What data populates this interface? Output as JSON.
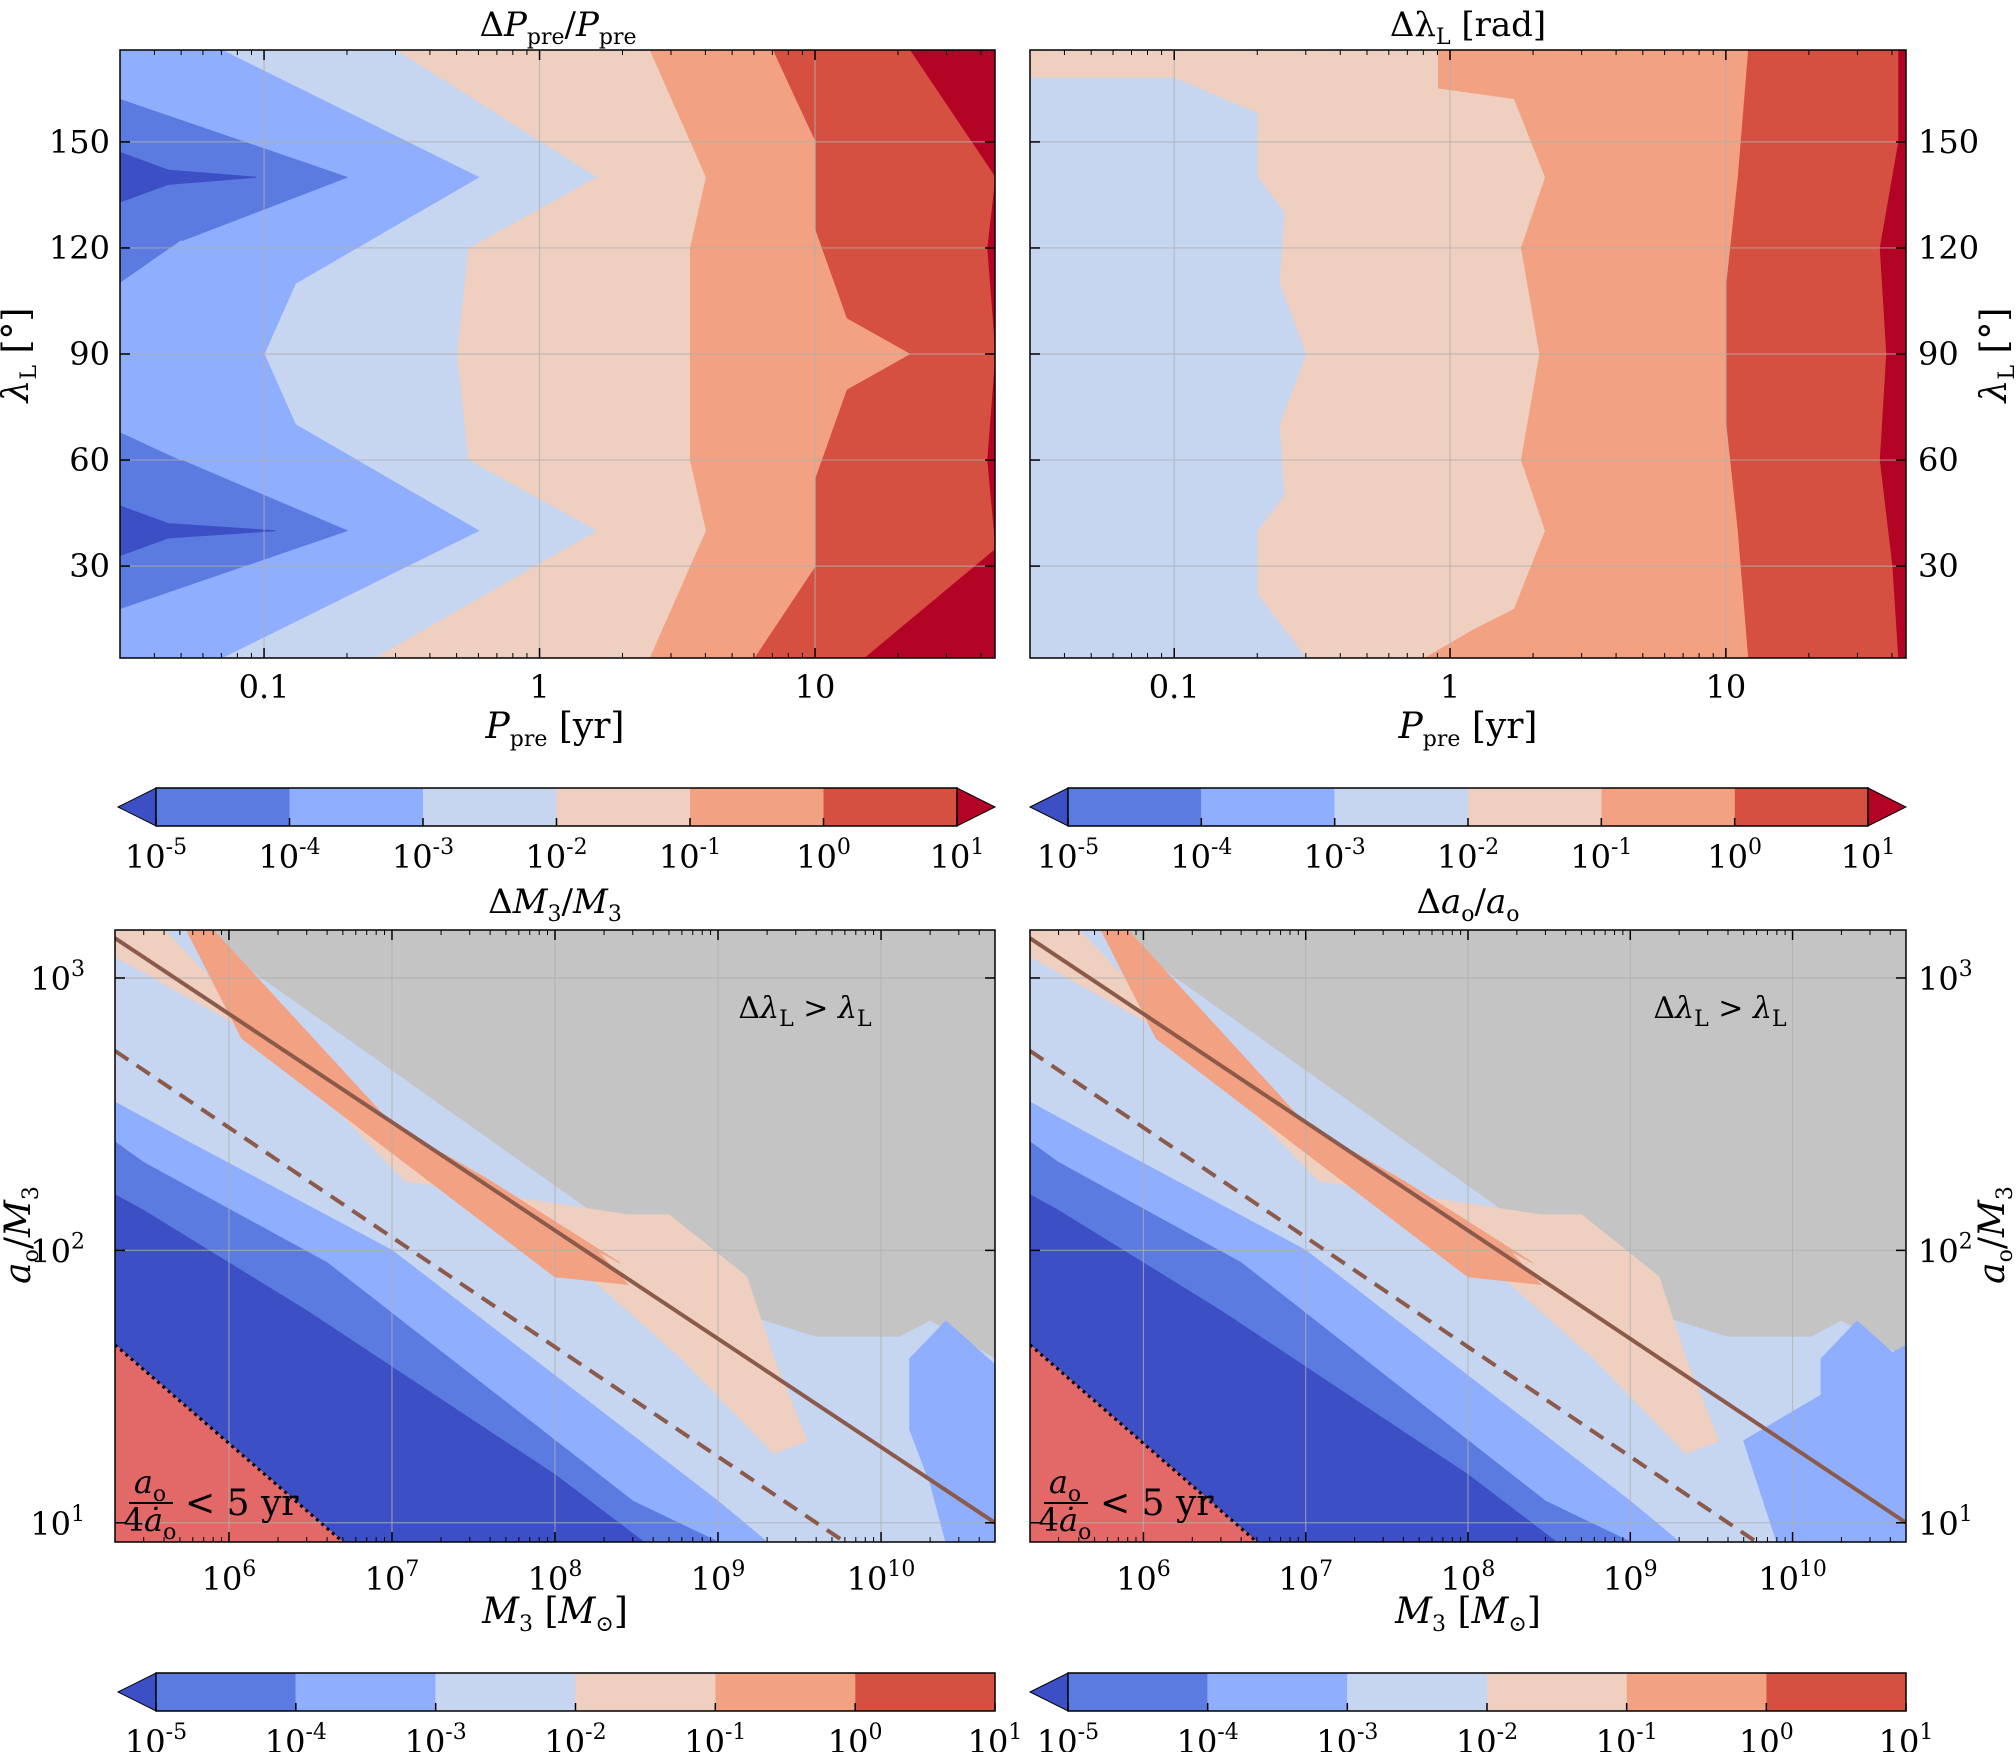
{
  "chart_data": [
    {
      "type": "contour",
      "title": "ΔP_pre/P_pre",
      "xlabel": "P_pre [yr]",
      "ylabel": "λ_L [°]",
      "xscale": "log",
      "xlim": [
        0.03,
        45
      ],
      "ylim": [
        4,
        176
      ],
      "x_ticks": [
        "0.1",
        "1",
        "10"
      ],
      "y_ticks": [
        "30",
        "60",
        "90",
        "120",
        "150"
      ],
      "levels": [
        1e-05,
        0.0001,
        0.001,
        0.01,
        0.1,
        1,
        10
      ],
      "grid": true,
      "contour_boundaries": [
        {
          "level": 1e-05,
          "points": [
            [
              0.04,
              40
            ],
            [
              0.04,
              140
            ]
          ]
        },
        {
          "level": 0.0001,
          "points": [
            [
              0.03,
              18
            ],
            [
              0.2,
              40
            ],
            [
              0.05,
              90
            ],
            [
              0.2,
              140
            ],
            [
              0.03,
              162
            ]
          ]
        },
        {
          "level": 0.001,
          "points": [
            [
              0.07,
              4
            ],
            [
              0.6,
              40
            ],
            [
              0.1,
              90
            ],
            [
              0.6,
              140
            ],
            [
              0.07,
              176
            ]
          ]
        },
        {
          "level": 0.01,
          "points": [
            [
              0.25,
              4
            ],
            [
              1.6,
              40
            ],
            [
              0.5,
              90
            ],
            [
              1.6,
              140
            ],
            [
              0.3,
              176
            ]
          ]
        },
        {
          "level": 0.1,
          "points": [
            [
              2.5,
              4
            ],
            [
              4,
              40
            ],
            [
              3.5,
              90
            ],
            [
              4,
              140
            ],
            [
              2.5,
              176
            ]
          ]
        },
        {
          "level": 1,
          "points": [
            [
              6,
              4
            ],
            [
              10,
              40
            ],
            [
              22,
              90
            ],
            [
              10,
              140
            ],
            [
              7,
              176
            ]
          ]
        },
        {
          "level": 10,
          "points": [
            [
              15,
              4
            ],
            [
              40,
              40
            ],
            [
              45,
              90
            ],
            [
              40,
              140
            ],
            [
              20,
              176
            ]
          ]
        }
      ]
    },
    {
      "type": "contour",
      "title": "Δλ_L [rad]",
      "xlabel": "P_pre [yr]",
      "ylabel": "λ_L [°]",
      "xscale": "log",
      "xlim": [
        0.03,
        45
      ],
      "ylim": [
        4,
        176
      ],
      "x_ticks": [
        "0.1",
        "1",
        "10"
      ],
      "y_ticks": [
        "30",
        "60",
        "90",
        "120",
        "150"
      ],
      "levels": [
        1e-05,
        0.0001,
        0.001,
        0.01,
        0.1,
        1,
        10
      ],
      "grid": true,
      "contour_boundaries": [
        {
          "level": 0.01,
          "points": [
            [
              0.3,
              4
            ],
            [
              0.2,
              40
            ],
            [
              0.28,
              90
            ],
            [
              0.2,
              140
            ],
            [
              0.1,
              168
            ]
          ]
        },
        {
          "level": 0.1,
          "points": [
            [
              0.8,
              4
            ],
            [
              2.2,
              40
            ],
            [
              2.1,
              90
            ],
            [
              2.2,
              140
            ],
            [
              0.9,
              176
            ]
          ]
        },
        {
          "level": 1,
          "points": [
            [
              12,
              4
            ],
            [
              11,
              40
            ],
            [
              10,
              90
            ],
            [
              11,
              140
            ],
            [
              12,
              176
            ]
          ]
        },
        {
          "level": 10,
          "points": [
            [
              42,
              20
            ],
            [
              38,
              90
            ],
            [
              42,
              150
            ]
          ]
        }
      ]
    },
    {
      "type": "contour",
      "title": "ΔM_3/M_3",
      "xlabel": "M_3 [M_⊙]",
      "ylabel": "a_o/M_3",
      "xscale": "log",
      "yscale": "log",
      "xlim": [
        200000,
        50000000000
      ],
      "ylim": [
        8.5,
        1500
      ],
      "x_ticks": [
        "10^6",
        "10^7",
        "10^8",
        "10^9",
        "10^10"
      ],
      "y_ticks": [
        "10^1",
        "10^2",
        "10^3"
      ],
      "levels": [
        1e-05,
        0.0001,
        0.001,
        0.01,
        0.1,
        1,
        10
      ],
      "grid": true,
      "lines": [
        {
          "style": "solid",
          "color": "#8b5a4a",
          "points": [
            [
              200000,
              1400
            ],
            [
              50000000000,
              10
            ]
          ]
        },
        {
          "style": "dashed",
          "color": "#8b5a4a",
          "points": [
            [
              200000,
              540
            ],
            [
              6000000000,
              8.5
            ]
          ]
        },
        {
          "style": "dotted",
          "color": "#000000",
          "points": [
            [
              200000,
              45
            ],
            [
              5000000,
              8.5
            ]
          ]
        }
      ],
      "annotations": [
        "Δλ_L > λ_L",
        "a_o / 4ȧ_o < 5 yr"
      ]
    },
    {
      "type": "contour",
      "title": "Δa_o/a_o",
      "xlabel": "M_3 [M_⊙]",
      "ylabel": "a_o/M_3",
      "xscale": "log",
      "yscale": "log",
      "xlim": [
        200000,
        50000000000
      ],
      "ylim": [
        8.5,
        1500
      ],
      "x_ticks": [
        "10^6",
        "10^7",
        "10^8",
        "10^9",
        "10^10"
      ],
      "y_ticks": [
        "10^1",
        "10^2",
        "10^3"
      ],
      "levels": [
        1e-05,
        0.0001,
        0.001,
        0.01,
        0.1,
        1,
        10
      ],
      "grid": true,
      "lines": [
        {
          "style": "solid",
          "color": "#8b5a4a",
          "points": [
            [
              200000,
              1400
            ],
            [
              50000000000,
              10
            ]
          ]
        },
        {
          "style": "dashed",
          "color": "#8b5a4a",
          "points": [
            [
              200000,
              540
            ],
            [
              6000000000,
              8.5
            ]
          ]
        },
        {
          "style": "dotted",
          "color": "#000000",
          "points": [
            [
              200000,
              45
            ],
            [
              5000000,
              8.5
            ]
          ]
        }
      ],
      "annotations": [
        "Δλ_L > λ_L",
        "a_o / 4ȧ_o < 5 yr"
      ]
    }
  ],
  "colorbars": {
    "levels": [
      "10^-5",
      "10^-4",
      "10^-3",
      "10^-2",
      "10^-1",
      "10^0",
      "10^1"
    ],
    "colors": [
      "#3d4fc4",
      "#5b7be1",
      "#8faefe",
      "#c6d5f0",
      "#efcfbf",
      "#f3a183",
      "#d55040",
      "#b40426"
    ],
    "extend": "both"
  }
}
